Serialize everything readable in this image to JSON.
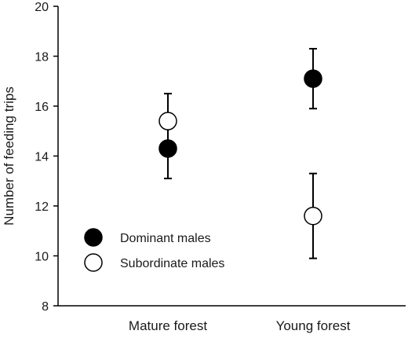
{
  "chart_data": {
    "type": "scatter",
    "title": "",
    "xlabel": "",
    "ylabel": "Number of feeding trips",
    "ylim": [
      8,
      20
    ],
    "yticks": [
      8,
      10,
      12,
      14,
      16,
      18,
      20
    ],
    "categories": [
      "Mature forest",
      "Young forest"
    ],
    "grid": false,
    "legend_position": "lower-left",
    "error_bars": true,
    "series": [
      {
        "name": "Dominant males",
        "marker": "filled-circle",
        "color": "#000000",
        "values": [
          14.3,
          17.1
        ],
        "lower": [
          13.1,
          15.9
        ],
        "upper": [
          15.5,
          18.3
        ]
      },
      {
        "name": "Subordinate males",
        "marker": "open-circle",
        "color": "#000000",
        "values": [
          15.4,
          11.6
        ],
        "lower": [
          14.3,
          9.9
        ],
        "upper": [
          16.5,
          13.3
        ]
      }
    ]
  }
}
